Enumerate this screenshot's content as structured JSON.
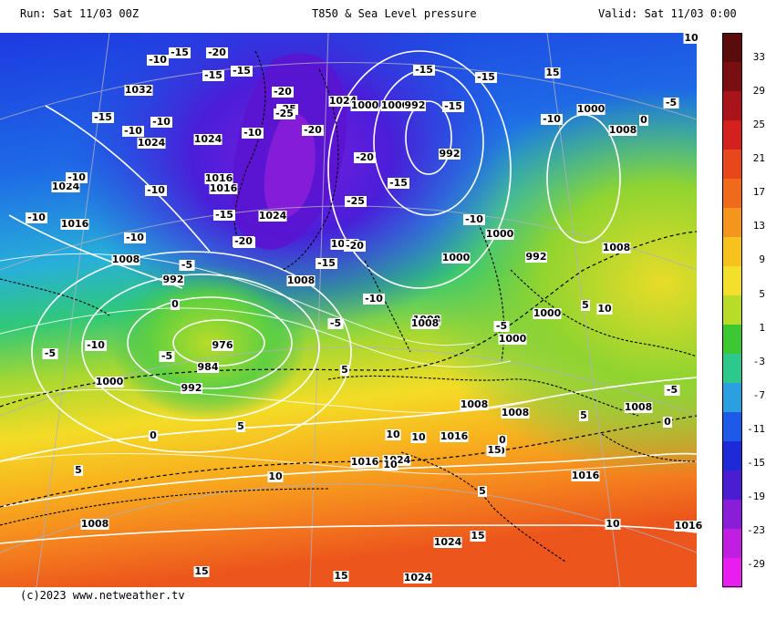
{
  "header": {
    "run": "Run: Sat 11/03 00Z",
    "title": "T850 & Sea Level pressure",
    "valid": "Valid: Sat 11/03 0:00"
  },
  "credit": "(c)2023 www.netweather.tv",
  "colorbar": {
    "labels": [
      "33",
      "29",
      "25",
      "21",
      "17",
      "13",
      "9",
      "5",
      "1",
      "-3",
      "-7",
      "-11",
      "-15",
      "-19",
      "-23",
      "-29"
    ],
    "colors": [
      "#5a0c0c",
      "#7a0f12",
      "#a8141a",
      "#d4201e",
      "#e8471c",
      "#f06a1c",
      "#f4951e",
      "#f8c21e",
      "#f4e02a",
      "#b8dc28",
      "#3cc832",
      "#2cc88c",
      "#2aa0e0",
      "#1e5ae8",
      "#1e2ad8",
      "#4a1ed0",
      "#8a1ed8",
      "#c01ee0",
      "#e81ef0"
    ]
  },
  "map": {
    "pressure_labels": [
      {
        "t": "1032"
      },
      {
        "t": "1024"
      },
      {
        "t": "1024"
      },
      {
        "t": "1024"
      },
      {
        "t": "1016"
      },
      {
        "t": "1016"
      },
      {
        "t": "1008"
      },
      {
        "t": "1008"
      },
      {
        "t": "1000"
      },
      {
        "t": "992"
      },
      {
        "t": "984"
      },
      {
        "t": "976"
      },
      {
        "t": "992"
      },
      {
        "t": "1000"
      },
      {
        "t": "1008"
      },
      {
        "t": "1016"
      },
      {
        "t": "1024"
      },
      {
        "t": "1000"
      },
      {
        "t": "992"
      },
      {
        "t": "1000"
      },
      {
        "t": "1008"
      },
      {
        "t": "1008"
      },
      {
        "t": "1000"
      },
      {
        "t": "1000"
      },
      {
        "t": "1008"
      },
      {
        "t": "1008"
      },
      {
        "t": "1016"
      },
      {
        "t": "1008"
      },
      {
        "t": "1016"
      },
      {
        "t": "1024"
      },
      {
        "t": "1016"
      },
      {
        "t": "1024"
      },
      {
        "t": "1024"
      },
      {
        "t": "1016"
      },
      {
        "t": "1016"
      },
      {
        "t": "992"
      },
      {
        "t": "1008"
      },
      {
        "t": "1024"
      },
      {
        "t": "1000"
      },
      {
        "t": "1000"
      },
      {
        "t": "992"
      },
      {
        "t": "1008"
      }
    ],
    "temp_labels": [
      {
        "t": "-15"
      },
      {
        "t": "-20"
      },
      {
        "t": "-15"
      },
      {
        "t": "-15"
      },
      {
        "t": "-10"
      },
      {
        "t": "-10"
      },
      {
        "t": "-10"
      },
      {
        "t": "-10"
      },
      {
        "t": "-10"
      },
      {
        "t": "-15"
      },
      {
        "t": "-10"
      },
      {
        "t": "-10"
      },
      {
        "t": "-5"
      },
      {
        "t": "0"
      },
      {
        "t": "-5"
      },
      {
        "t": "-10"
      },
      {
        "t": "-5"
      },
      {
        "t": "0"
      },
      {
        "t": "5"
      },
      {
        "t": "-5"
      },
      {
        "t": "5"
      },
      {
        "t": "10"
      },
      {
        "t": "10"
      },
      {
        "t": "10"
      },
      {
        "t": "15"
      },
      {
        "t": "15"
      },
      {
        "t": "-20"
      },
      {
        "t": "-25"
      },
      {
        "t": "-20"
      },
      {
        "t": "-25"
      },
      {
        "t": "-20"
      },
      {
        "t": "-15"
      },
      {
        "t": "-25"
      },
      {
        "t": "-20"
      },
      {
        "t": "-15"
      },
      {
        "t": "-10"
      },
      {
        "t": "-15"
      },
      {
        "t": "-15"
      },
      {
        "t": "-15"
      },
      {
        "t": "-10"
      },
      {
        "t": "-10"
      },
      {
        "t": "-10"
      },
      {
        "t": "-5"
      },
      {
        "t": "-10"
      },
      {
        "t": "0"
      },
      {
        "t": "5"
      },
      {
        "t": "-5"
      },
      {
        "t": "0"
      },
      {
        "t": "5"
      },
      {
        "t": "10"
      },
      {
        "t": "5"
      },
      {
        "t": "10"
      },
      {
        "t": "10"
      },
      {
        "t": "15"
      },
      {
        "t": "15"
      },
      {
        "t": "15"
      },
      {
        "t": "10"
      },
      {
        "t": "-5"
      },
      {
        "t": "0"
      },
      {
        "t": "-20"
      },
      {
        "t": "-15"
      },
      {
        "t": "10"
      },
      {
        "t": "5"
      }
    ]
  }
}
